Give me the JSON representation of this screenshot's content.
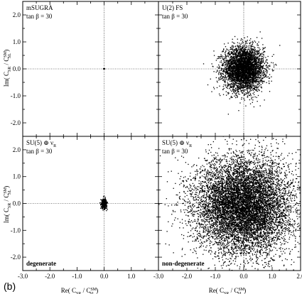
{
  "figure_label": "(b)",
  "x_axis_label": "Re( C",
  "x_axis_label_sub1": "SR",
  "x_axis_label_mid": " / C",
  "x_axis_label_sup2": "SM",
  "x_axis_label_sub2": "SL",
  "x_axis_label_end": " )",
  "y_axis_label": "Im( C",
  "y_axis_label_sub1": "SR",
  "y_axis_label_mid": " / C",
  "y_axis_label_sup2": "SM",
  "y_axis_label_sub2": "SL",
  "y_axis_label_end": " )",
  "x_tick_labels": [
    "-3.0",
    "-2.0",
    "-1.0",
    "0.0",
    "1.0",
    "2.0"
  ],
  "y_tick_labels": [
    "-2.0",
    "-1.0",
    "0.0",
    "1.0",
    "2.0"
  ],
  "chart_data": [
    {
      "type": "scatter",
      "panel": "top-left",
      "title": "mSUGRA",
      "subtitle": "tan β = 30",
      "annotation": "",
      "xlim": [
        -3.0,
        2.0
      ],
      "ylim": [
        -2.5,
        2.5
      ],
      "cloud": {
        "center": [
          0.0,
          0.0
        ],
        "spread": [
          0.0,
          0.0
        ],
        "count": 1
      }
    },
    {
      "type": "scatter",
      "panel": "top-right",
      "title": "U(2) FS",
      "subtitle": "tan β = 30",
      "annotation": "",
      "xlim": [
        -3.0,
        2.0
      ],
      "ylim": [
        -2.5,
        2.5
      ],
      "cloud": {
        "center": [
          0.0,
          0.0
        ],
        "spread": [
          0.35,
          0.4
        ],
        "count": 4000
      }
    },
    {
      "type": "scatter",
      "panel": "bottom-left",
      "title": "SU(5) ⊕ ν",
      "title_sub": "R",
      "subtitle": "tan β = 30",
      "annotation": "degenerate",
      "xlim": [
        -3.0,
        2.0
      ],
      "ylim": [
        -2.5,
        2.5
      ],
      "cloud": {
        "center": [
          0.0,
          0.0
        ],
        "spread": [
          0.05,
          0.09
        ],
        "count": 400
      }
    },
    {
      "type": "scatter",
      "panel": "bottom-right",
      "title": "SU(5) ⊕ ν",
      "title_sub": "R",
      "subtitle": "tan β = 30",
      "annotation": "non-degenerate",
      "xlim": [
        -3.0,
        2.0
      ],
      "ylim": [
        -2.5,
        2.5
      ],
      "cloud": {
        "center": [
          0.0,
          -0.1
        ],
        "spread": [
          0.85,
          0.9
        ],
        "count": 9000
      }
    }
  ]
}
